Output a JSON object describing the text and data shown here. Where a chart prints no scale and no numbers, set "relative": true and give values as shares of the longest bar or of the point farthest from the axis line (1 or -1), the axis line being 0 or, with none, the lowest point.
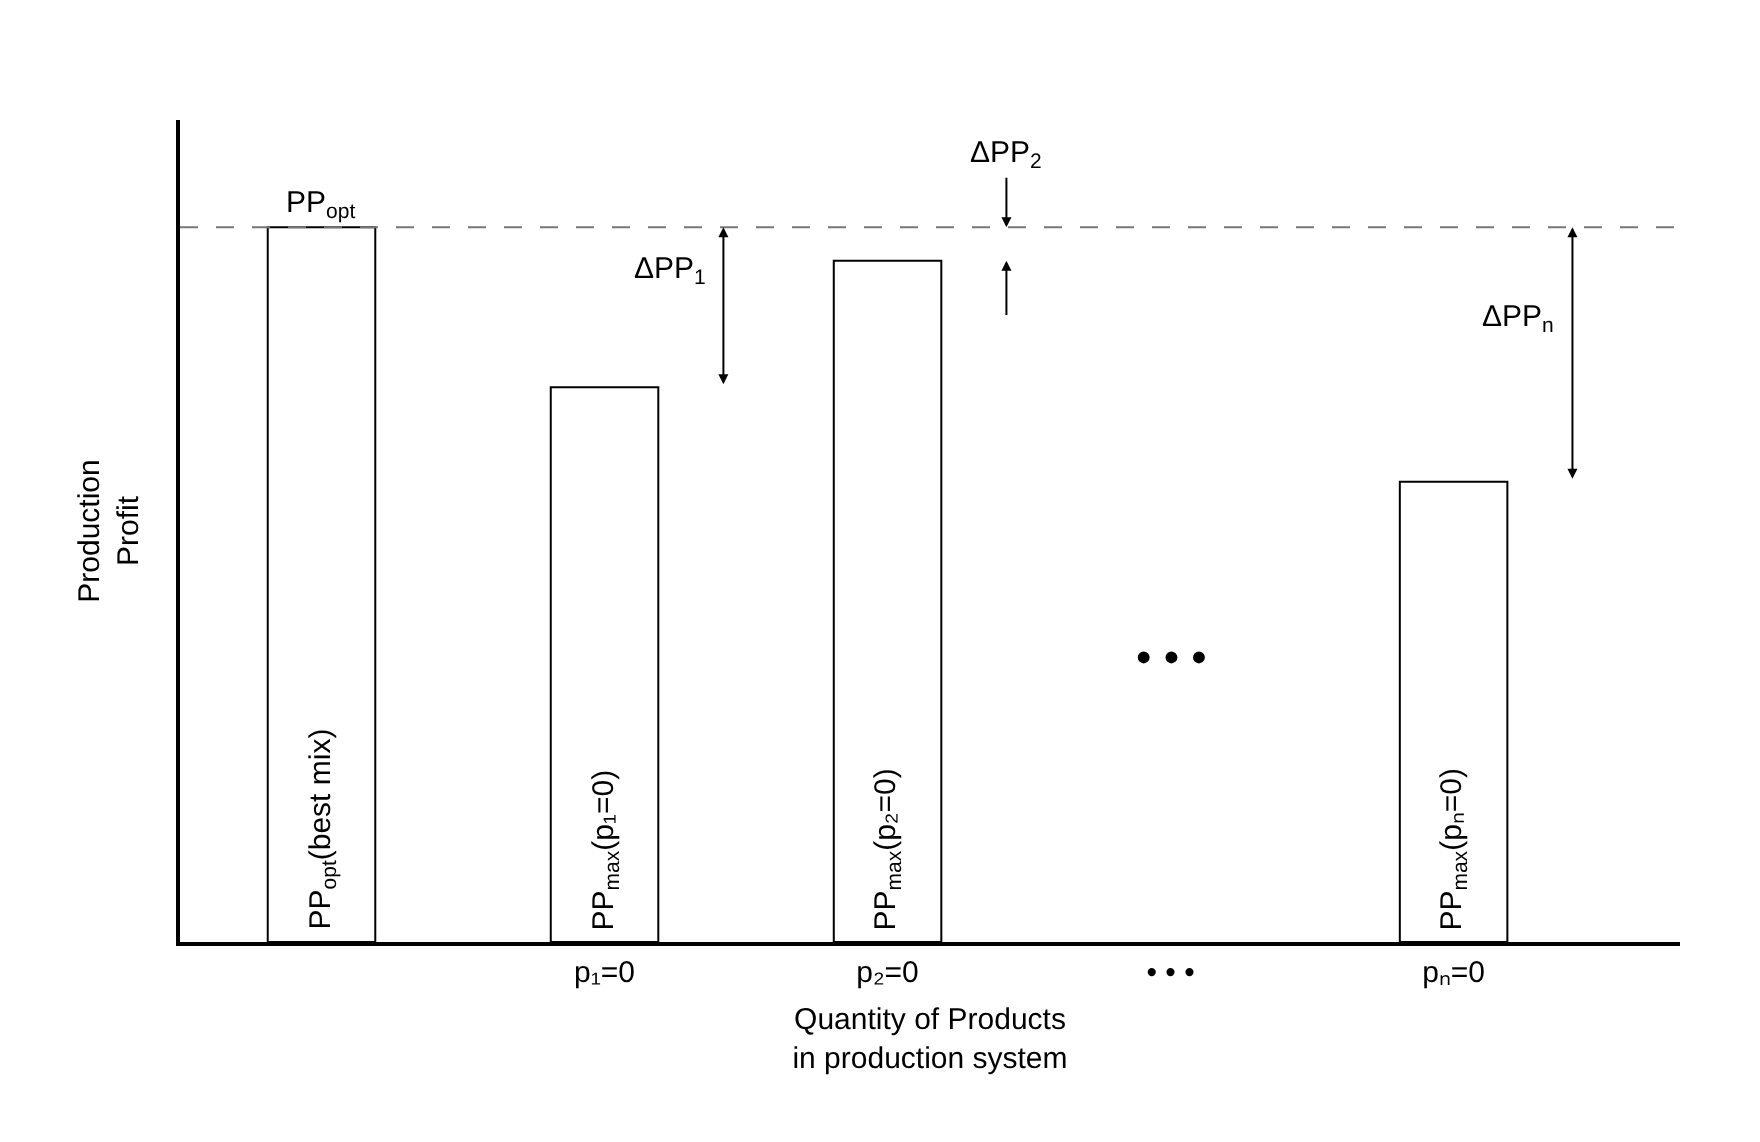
{
  "chart_data": {
    "type": "bar",
    "relative": true,
    "xlabel": "Quantity of Products\nin production system",
    "ylabel": "Production\nProfit",
    "categories": [
      null,
      "p₁=0",
      "p₂=0",
      "• • •",
      "pₙ=0"
    ],
    "values": [
      1,
      0.776,
      0.953,
      null,
      0.644
    ],
    "color": "#ffffff",
    "ref_lines": [
      {
        "axis": "y",
        "value": 1,
        "color": "#777777",
        "line_style": "dashed"
      }
    ],
    "annotations": [
      "PP$_{opt}$",
      "PP$_{opt}$(best mix)",
      "PP$_{max}$(p₁=0)",
      "ΔPP$_{1}$",
      "PP$_{max}$(p₂=0)",
      "ΔPP$_{2}$",
      "• • •",
      "PP$_{max}$(pₙ=0)",
      "ΔPP$_{n}$"
    ]
  }
}
